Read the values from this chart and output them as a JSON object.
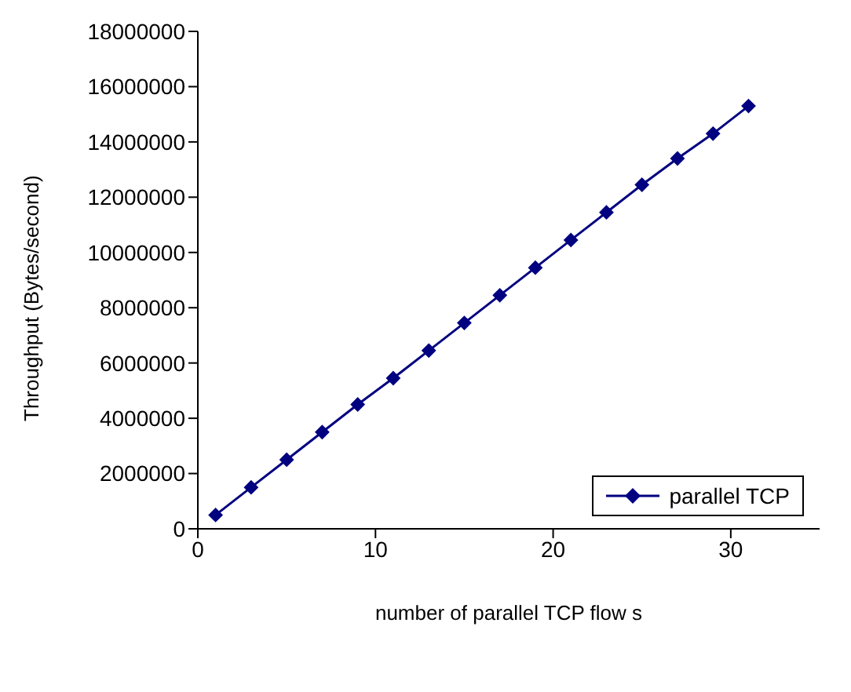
{
  "chart_data": {
    "type": "line",
    "xlabel": "number of parallel TCP flow s",
    "ylabel": "Throughput (Bytes/second)",
    "x": [
      1,
      3,
      5,
      7,
      9,
      11,
      13,
      15,
      17,
      19,
      21,
      23,
      25,
      27,
      29,
      31
    ],
    "series": [
      {
        "name": "parallel TCP",
        "color": "#000080",
        "values": [
          500000,
          1500000,
          2500000,
          3500000,
          4500000,
          5450000,
          6450000,
          7450000,
          8450000,
          9450000,
          10450000,
          11450000,
          12450000,
          13400000,
          14300000,
          15300000
        ]
      }
    ],
    "xlim": [
      0,
      35
    ],
    "xticks": [
      0,
      10,
      20,
      30
    ],
    "ylim": [
      0,
      18000000
    ],
    "yticks": [
      0,
      2000000,
      4000000,
      6000000,
      8000000,
      10000000,
      12000000,
      14000000,
      16000000,
      18000000
    ],
    "grid": false,
    "legend": "bottom right",
    "marker": "diamond",
    "line_style": "solid"
  }
}
